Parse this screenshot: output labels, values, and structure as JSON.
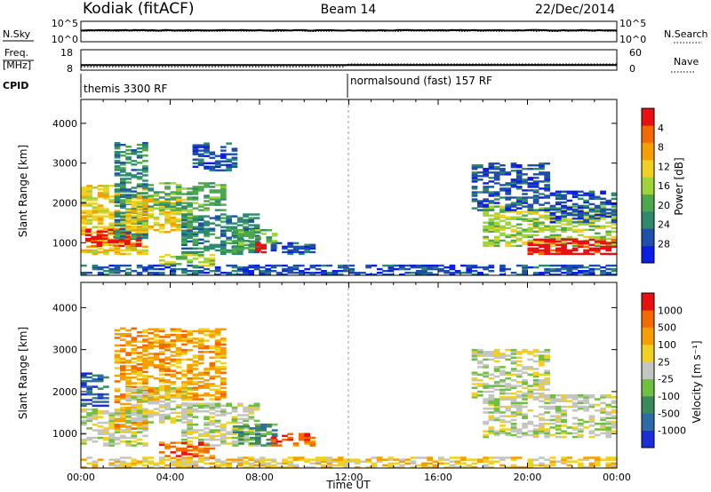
{
  "header": {
    "station": "Kodiak (fitACF)",
    "beam": "Beam 14",
    "date": "22/Dec/2014"
  },
  "noise_panel": {
    "left_label": "N.Sky",
    "right_label": "N.Search",
    "left_ticks": [
      "10^5",
      "10^0"
    ],
    "right_ticks": [
      "10^5",
      "10^0"
    ],
    "n_sky_log10": 2.8,
    "n_search_log10": 2.6
  },
  "freq_panel": {
    "left_label_1": "Freq.",
    "left_label_2": "[MHz]",
    "right_label": "Nave",
    "left_ticks": [
      "18",
      "8"
    ],
    "right_ticks": [
      "60",
      "0"
    ],
    "freq_mhz": 10.5,
    "nave_before_1200": 10,
    "nave_after_1200": 18
  },
  "cpid": {
    "label": "CPID",
    "segments": [
      {
        "start": "00:00",
        "text": "themis 3300 RF"
      },
      {
        "start": "12:00",
        "text": "normalsound (fast) 157 RF"
      }
    ]
  },
  "time_axis": {
    "xlabel": "Time UT",
    "ticks": [
      "00:00",
      "04:00",
      "08:00",
      "12:00",
      "16:00",
      "20:00",
      "00:00"
    ],
    "tick_hours": [
      0,
      4,
      8,
      12,
      16,
      20,
      24
    ]
  },
  "chart_data": [
    {
      "type": "heatmap",
      "name": "power",
      "ylabel": "Slant Range [km]",
      "yticks": [
        "1000",
        "2000",
        "3000",
        "4000"
      ],
      "ylim": [
        180,
        4600
      ],
      "xlim_hours": [
        0,
        24
      ],
      "colorbar_label": "Power [dB]",
      "colorbar_ticks": [
        "4",
        "8",
        "12",
        "16",
        "20",
        "24",
        "28"
      ],
      "colorbar_colors": [
        "#0a1ee6",
        "#1f4fa8",
        "#2d8a6e",
        "#4ca84b",
        "#9ed33a",
        "#f0d020",
        "#f5a000",
        "#f56a00",
        "#e81010"
      ],
      "regions": [
        {
          "t": [
            0.0,
            2.8
          ],
          "r": [
            700,
            2450
          ],
          "level": 5
        },
        {
          "t": [
            0.2,
            2.6
          ],
          "r": [
            900,
            1350
          ],
          "level": 8
        },
        {
          "t": [
            1.5,
            3.0
          ],
          "r": [
            1100,
            3500
          ],
          "level": 2
        },
        {
          "t": [
            2.0,
            5.0
          ],
          "r": [
            1250,
            2100
          ],
          "level": 5
        },
        {
          "t": [
            3.0,
            6.5
          ],
          "r": [
            1800,
            2500
          ],
          "level": 3
        },
        {
          "t": [
            4.5,
            7.8
          ],
          "r": [
            700,
            1700
          ],
          "level": 2
        },
        {
          "t": [
            5.0,
            7.0
          ],
          "r": [
            2800,
            3500
          ],
          "level": 1
        },
        {
          "t": [
            3.5,
            6.0
          ],
          "r": [
            400,
            700
          ],
          "level": 4
        },
        {
          "t": [
            6.8,
            8.6
          ],
          "r": [
            800,
            1300
          ],
          "level": 3
        },
        {
          "t": [
            7.8,
            8.2
          ],
          "r": [
            700,
            1000
          ],
          "level": 8
        },
        {
          "t": [
            8.5,
            10.5
          ],
          "r": [
            700,
            1000
          ],
          "level": 1
        },
        {
          "t": [
            0.0,
            24.0
          ],
          "r": [
            180,
            420
          ],
          "level": 1
        },
        {
          "t": [
            18.0,
            24.0
          ],
          "r": [
            900,
            1900
          ],
          "level": 4
        },
        {
          "t": [
            20.0,
            24.0
          ],
          "r": [
            700,
            1100
          ],
          "level": 8
        },
        {
          "t": [
            17.5,
            21.0
          ],
          "r": [
            1800,
            3000
          ],
          "level": 1
        },
        {
          "t": [
            21.0,
            24.0
          ],
          "r": [
            1500,
            2300
          ],
          "level": 1
        }
      ]
    },
    {
      "type": "heatmap",
      "name": "velocity",
      "ylabel": "Slant Range [km]",
      "yticks": [
        "1000",
        "2000",
        "3000",
        "4000"
      ],
      "ylim": [
        180,
        4600
      ],
      "xlim_hours": [
        0,
        24
      ],
      "colorbar_label": "Velocity [m s⁻¹]",
      "colorbar_ticks": [
        "1000",
        "500",
        "100",
        "25",
        "-25",
        "-100",
        "-500",
        "-1000"
      ],
      "colorbar_colors": [
        "#1a2fd8",
        "#2d6aa8",
        "#3a8a5a",
        "#6fc040",
        "#c4c4c0",
        "#f0d020",
        "#f5a000",
        "#f56a00",
        "#e81010"
      ],
      "regions": [
        {
          "t": [
            0.0,
            2.8
          ],
          "r": [
            700,
            1600
          ],
          "level": 4
        },
        {
          "t": [
            0.0,
            1.2
          ],
          "r": [
            1600,
            2450
          ],
          "level": 1
        },
        {
          "t": [
            1.5,
            3.0
          ],
          "r": [
            1100,
            3500
          ],
          "level": 6
        },
        {
          "t": [
            2.0,
            5.0
          ],
          "r": [
            1250,
            2100
          ],
          "level": 4
        },
        {
          "t": [
            3.0,
            6.5
          ],
          "r": [
            1800,
            3500
          ],
          "level": 6
        },
        {
          "t": [
            4.5,
            7.8
          ],
          "r": [
            700,
            1700
          ],
          "level": 4
        },
        {
          "t": [
            3.5,
            6.0
          ],
          "r": [
            400,
            800
          ],
          "level": 7
        },
        {
          "t": [
            6.8,
            8.6
          ],
          "r": [
            700,
            1200
          ],
          "level": 2
        },
        {
          "t": [
            8.5,
            10.5
          ],
          "r": [
            700,
            1000
          ],
          "level": 7
        },
        {
          "t": [
            0.0,
            24.0
          ],
          "r": [
            180,
            420
          ],
          "level": 5
        },
        {
          "t": [
            18.0,
            24.0
          ],
          "r": [
            900,
            1900
          ],
          "level": 4
        },
        {
          "t": [
            17.5,
            21.0
          ],
          "r": [
            1800,
            3000
          ],
          "level": 4
        }
      ]
    }
  ]
}
